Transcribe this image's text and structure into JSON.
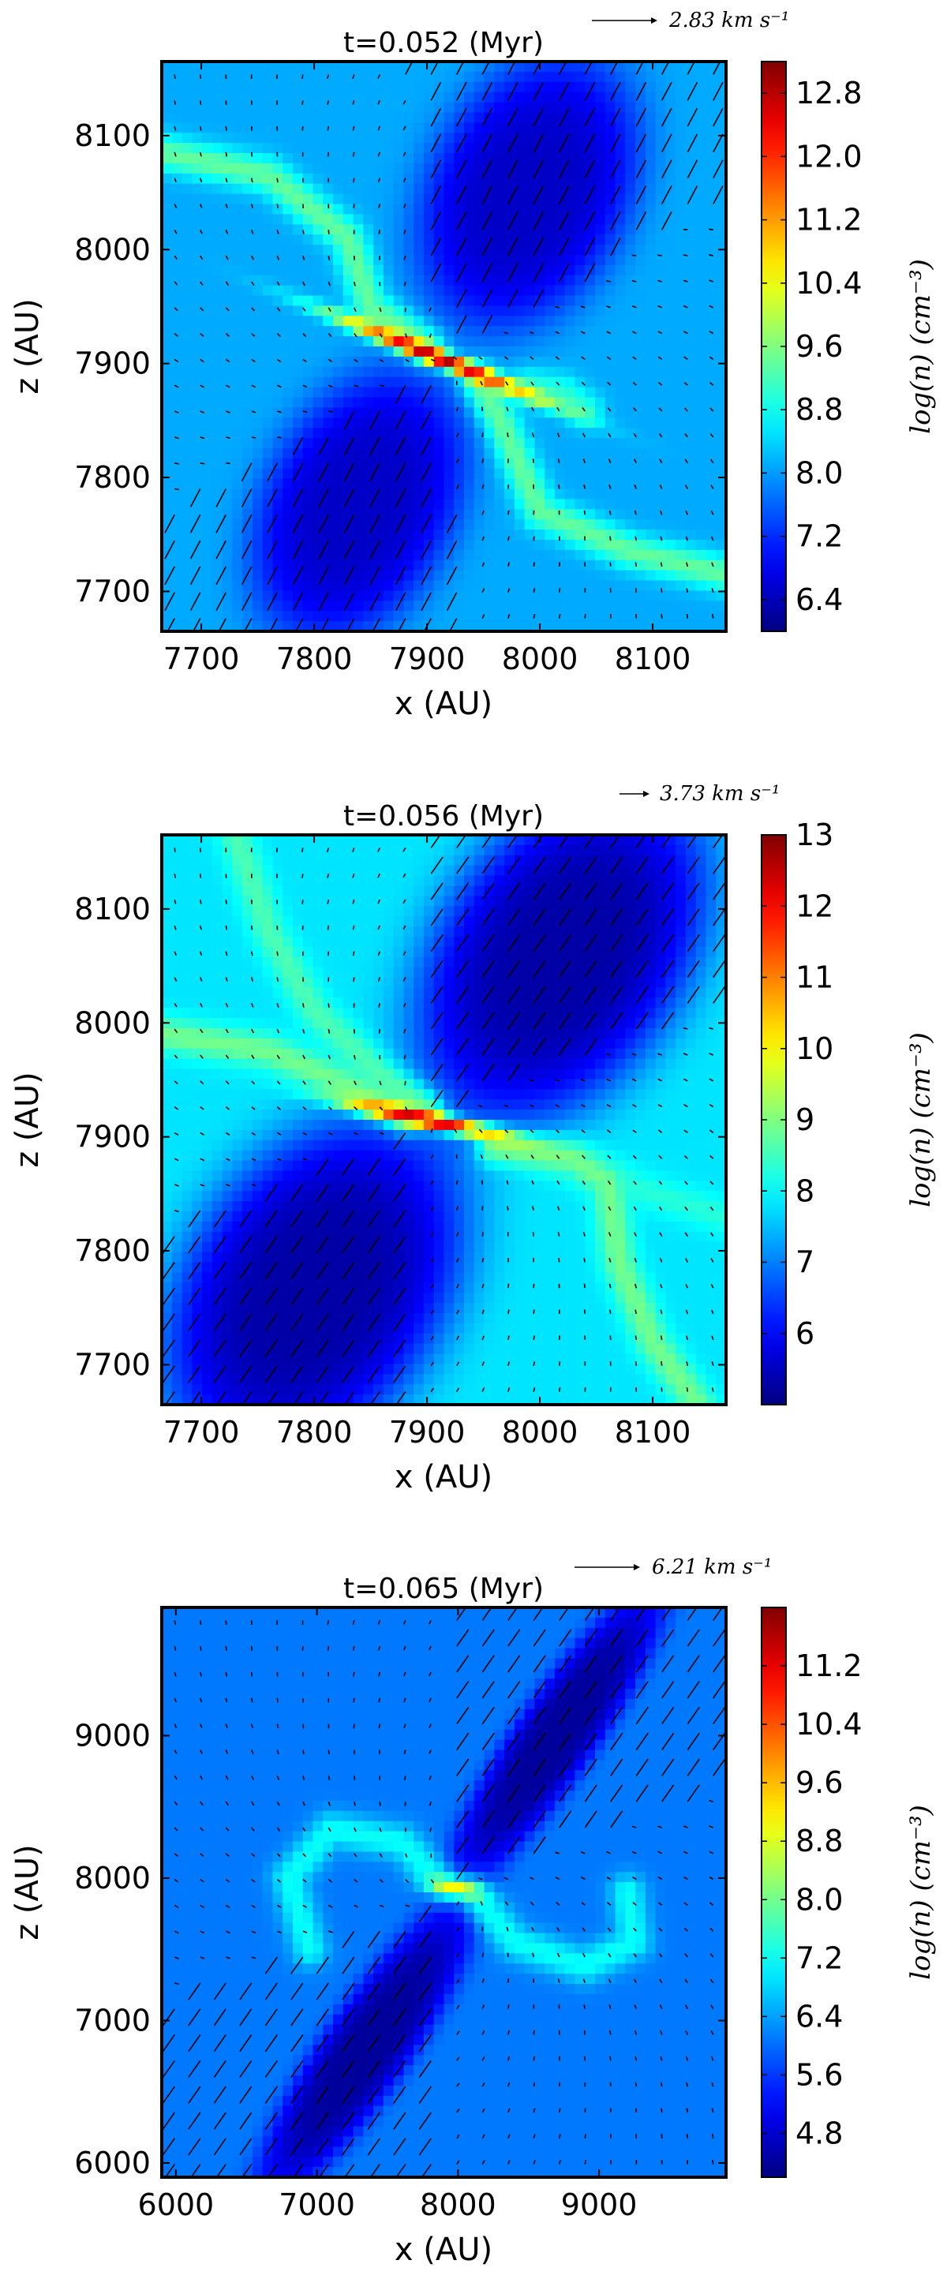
{
  "chart_data": [
    {
      "type": "heatmap",
      "title": "t=0.052 (Myr)",
      "xlabel": "x (AU)",
      "ylabel": "z (AU)",
      "xlim": [
        7665,
        8165
      ],
      "ylim": [
        7665,
        8165
      ],
      "xticks": [
        7700,
        7800,
        7900,
        8000,
        8100
      ],
      "yticks": [
        7700,
        7800,
        7900,
        8000,
        8100
      ],
      "colorbar": {
        "label": "log(n) (cm⁻³)",
        "range": [
          6.0,
          13.2
        ],
        "ticks": [
          6.4,
          7.2,
          8.0,
          8.8,
          9.6,
          10.4,
          11.2,
          12.0,
          12.8
        ],
        "tick_labels": [
          "6.4",
          "7.2",
          "8.0",
          "8.8",
          "9.6",
          "10.4",
          "11.2",
          "12.0",
          "12.8"
        ]
      },
      "velocity_key": "2.83 km s⁻¹",
      "colormap": "jet",
      "background_level": 8.1,
      "disk_center": [
        7910,
        7905
      ],
      "disk_angle_deg": -22,
      "disk_half_length": 95,
      "disk_peak": 12.9,
      "cavity_level": 6.5,
      "cavities": [
        {
          "cx": 7990,
          "cy": 8050,
          "angle_deg": 62,
          "half_length": 130,
          "half_width": 90
        },
        {
          "cx": 7840,
          "cy": 7775,
          "angle_deg": 62,
          "half_length": 130,
          "half_width": 85
        }
      ],
      "filaments": [
        {
          "level": 9.4,
          "points": [
            [
              7665,
              8085
            ],
            [
              7760,
              8065
            ],
            [
              7830,
              8010
            ],
            [
              7850,
              7950
            ],
            [
              7900,
              7915
            ]
          ]
        },
        {
          "level": 9.4,
          "points": [
            [
              8165,
              7715
            ],
            [
              8080,
              7735
            ],
            [
              8000,
              7770
            ],
            [
              7965,
              7850
            ],
            [
              7945,
              7885
            ]
          ]
        },
        {
          "level": 9.0,
          "points": [
            [
              7990,
              7880
            ],
            [
              8020,
              7875
            ],
            [
              8040,
              7860
            ]
          ]
        }
      ]
    },
    {
      "type": "heatmap",
      "title": "t=0.056 (Myr)",
      "xlabel": "x (AU)",
      "ylabel": "z (AU)",
      "xlim": [
        7665,
        8165
      ],
      "ylim": [
        7665,
        8165
      ],
      "xticks": [
        7700,
        7800,
        7900,
        8000,
        8100
      ],
      "yticks": [
        7700,
        7800,
        7900,
        8000,
        8100
      ],
      "colorbar": {
        "label": "log(n) (cm⁻³)",
        "range": [
          5.0,
          13.0
        ],
        "ticks": [
          6,
          7,
          8,
          9,
          10,
          11,
          12,
          13
        ],
        "tick_labels": [
          "6",
          "7",
          "8",
          "9",
          "10",
          "11",
          "12",
          "13"
        ]
      },
      "velocity_key": "3.73 km s⁻¹",
      "colormap": "jet",
      "background_level": 7.8,
      "disk_center": [
        7900,
        7915
      ],
      "disk_angle_deg": -12,
      "disk_half_length": 70,
      "disk_peak": 12.6,
      "cavity_level": 5.3,
      "cavities": [
        {
          "cx": 8020,
          "cy": 8060,
          "angle_deg": 55,
          "half_length": 170,
          "half_width": 110
        },
        {
          "cx": 7800,
          "cy": 7765,
          "angle_deg": 55,
          "half_length": 170,
          "half_width": 115
        }
      ],
      "filaments": [
        {
          "level": 8.6,
          "points": [
            [
              7730,
              8165
            ],
            [
              7760,
              8080
            ],
            [
              7800,
              8010
            ],
            [
              7860,
              7955
            ],
            [
              7900,
              7925
            ]
          ]
        },
        {
          "level": 8.9,
          "points": [
            [
              7665,
              7990
            ],
            [
              7760,
              7975
            ],
            [
              7830,
              7945
            ],
            [
              7880,
              7920
            ]
          ]
        },
        {
          "level": 8.9,
          "points": [
            [
              7960,
              7890
            ],
            [
              8030,
              7880
            ],
            [
              8060,
              7860
            ],
            [
              8070,
              7790
            ],
            [
              8100,
              7720
            ],
            [
              8140,
              7665
            ]
          ]
        },
        {
          "level": 8.3,
          "points": [
            [
              8020,
              7880
            ],
            [
              8100,
              7850
            ],
            [
              8165,
              7830
            ]
          ]
        }
      ]
    },
    {
      "type": "heatmap",
      "title": "t=0.065 (Myr)",
      "xlabel": "x (AU)",
      "ylabel": "z (AU)",
      "xlim": [
        5900,
        9900
      ],
      "ylim": [
        5900,
        9900
      ],
      "xticks": [
        6000,
        7000,
        8000,
        9000
      ],
      "yticks": [
        6000,
        7000,
        8000,
        9000
      ],
      "colorbar": {
        "label": "log(n) (cm⁻³)",
        "range": [
          4.2,
          12.0
        ],
        "ticks": [
          4.8,
          5.6,
          6.4,
          7.2,
          8.0,
          8.8,
          9.6,
          10.4,
          11.2
        ],
        "tick_labels": [
          "4.8",
          "5.6",
          "6.4",
          "7.2",
          "8.0",
          "8.8",
          "9.6",
          "10.4",
          "11.2"
        ]
      },
      "velocity_key": "6.21 km s⁻¹",
      "colormap": "jet",
      "background_level": 6.1,
      "disk_center": [
        7980,
        7930
      ],
      "disk_angle_deg": -10,
      "disk_half_length": 180,
      "disk_peak": 9.2,
      "cavity_level": 4.4,
      "cavities": [
        {
          "cx": 8700,
          "cy": 9000,
          "angle_deg": 55,
          "half_length": 1250,
          "half_width": 280
        },
        {
          "cx": 7350,
          "cy": 6800,
          "angle_deg": 55,
          "half_length": 1250,
          "half_width": 300
        }
      ],
      "filaments": [
        {
          "level": 7.2,
          "points": [
            [
              7900,
              7950
            ],
            [
              7600,
              8250
            ],
            [
              7100,
              8340
            ],
            [
              6800,
              8000
            ],
            [
              6950,
              7500
            ]
          ]
        },
        {
          "level": 7.2,
          "points": [
            [
              8100,
              7900
            ],
            [
              8400,
              7550
            ],
            [
              8900,
              7380
            ],
            [
              9250,
              7550
            ],
            [
              9200,
              7900
            ]
          ]
        }
      ]
    }
  ]
}
